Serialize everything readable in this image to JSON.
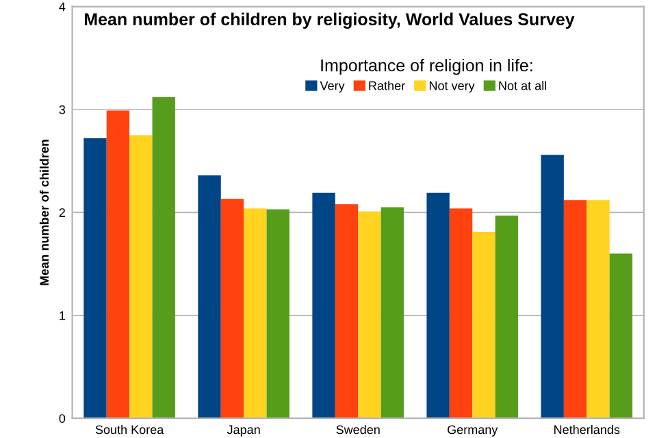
{
  "chart_data": {
    "type": "bar",
    "title": "Mean number of children by religiosity, World Values Survey",
    "ylabel": "Mean number of children",
    "legend_title": "Importance of religion in life:",
    "categories": [
      "South Korea",
      "Japan",
      "Sweden",
      "Germany",
      "Netherlands"
    ],
    "series": [
      {
        "name": "Very",
        "color": "#004586",
        "values": [
          2.72,
          2.36,
          2.19,
          2.19,
          2.56
        ]
      },
      {
        "name": "Rather",
        "color": "#ff420e",
        "values": [
          2.99,
          2.13,
          2.08,
          2.04,
          2.12
        ]
      },
      {
        "name": "Not very",
        "color": "#ffd320",
        "values": [
          2.75,
          2.04,
          2.01,
          1.81,
          2.12
        ]
      },
      {
        "name": "Not at all",
        "color": "#579d1c",
        "values": [
          3.12,
          2.03,
          2.05,
          1.97,
          1.6
        ]
      }
    ],
    "ylim": [
      0,
      4
    ],
    "yticks": [
      0,
      1,
      2,
      3,
      4
    ],
    "grid": "y",
    "legend": "top"
  }
}
